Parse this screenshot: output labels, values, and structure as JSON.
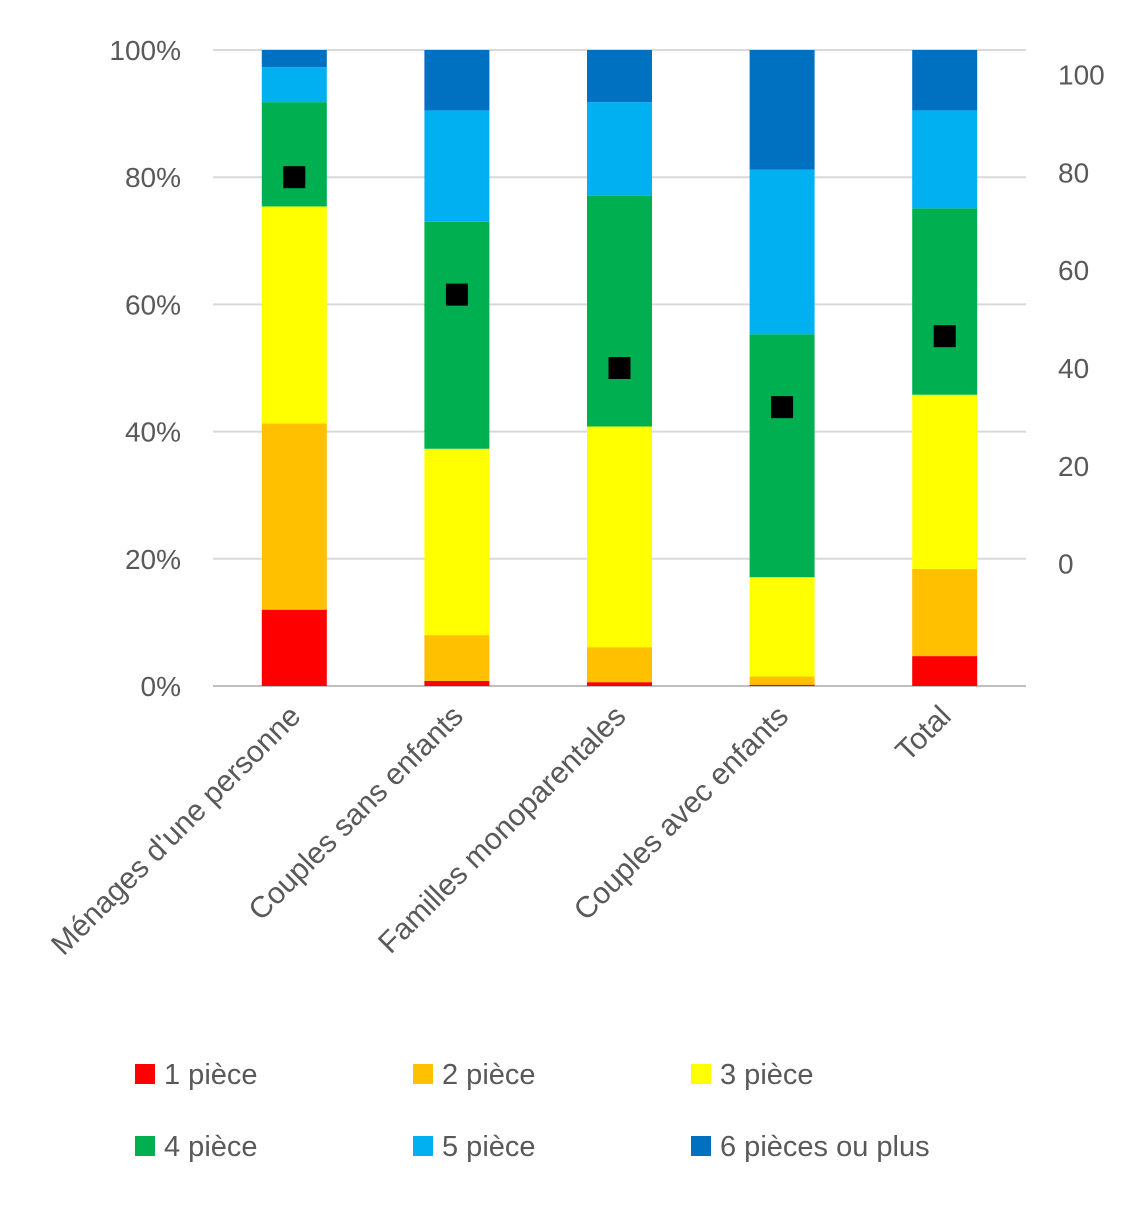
{
  "chart_data": {
    "type": "bar",
    "stacked": true,
    "categories": [
      "Ménages d'une personne",
      "Couples sans enfants",
      "Familles monoparentales",
      "Couples avec enfants",
      "Total"
    ],
    "series": [
      {
        "name": "1 pièce",
        "color": "#ff0000",
        "values": [
          0.12,
          0.008,
          0.006,
          0.002,
          0.047
        ]
      },
      {
        "name": "2 pièce",
        "color": "#ffc000",
        "values": [
          0.293,
          0.072,
          0.055,
          0.013,
          0.137
        ]
      },
      {
        "name": "3 pièce",
        "color": "#ffff00",
        "values": [
          0.341,
          0.293,
          0.347,
          0.156,
          0.274
        ]
      },
      {
        "name": "4 pièce",
        "color": "#00b050",
        "values": [
          0.164,
          0.357,
          0.363,
          0.382,
          0.293
        ]
      },
      {
        "name": "5 pièce",
        "color": "#00b0f0",
        "values": [
          0.055,
          0.175,
          0.147,
          0.259,
          0.154
        ]
      },
      {
        "name": "6 pièces ou plus",
        "color": "#0070c0",
        "values": [
          0.027,
          0.095,
          0.082,
          0.188,
          0.095
        ]
      }
    ],
    "secondary_series": {
      "type": "scatter",
      "marker": "square",
      "color": "#000000",
      "values": [
        79,
        55,
        40,
        32,
        46.5
      ]
    },
    "y_left": {
      "ylim": [
        0,
        1
      ],
      "ticks": [
        0,
        0.2,
        0.4,
        0.6,
        0.8,
        1.0
      ],
      "tick_labels": [
        "0%",
        "20%",
        "40%",
        "60%",
        "80%",
        "100%"
      ]
    },
    "y_right": {
      "ylim": [
        -25,
        105
      ],
      "ticks": [
        0,
        20,
        40,
        60,
        80,
        100
      ],
      "tick_labels": [
        "0",
        "20",
        "40",
        "60",
        "80",
        "100"
      ]
    },
    "grid": true,
    "legend_position": "bottom"
  }
}
